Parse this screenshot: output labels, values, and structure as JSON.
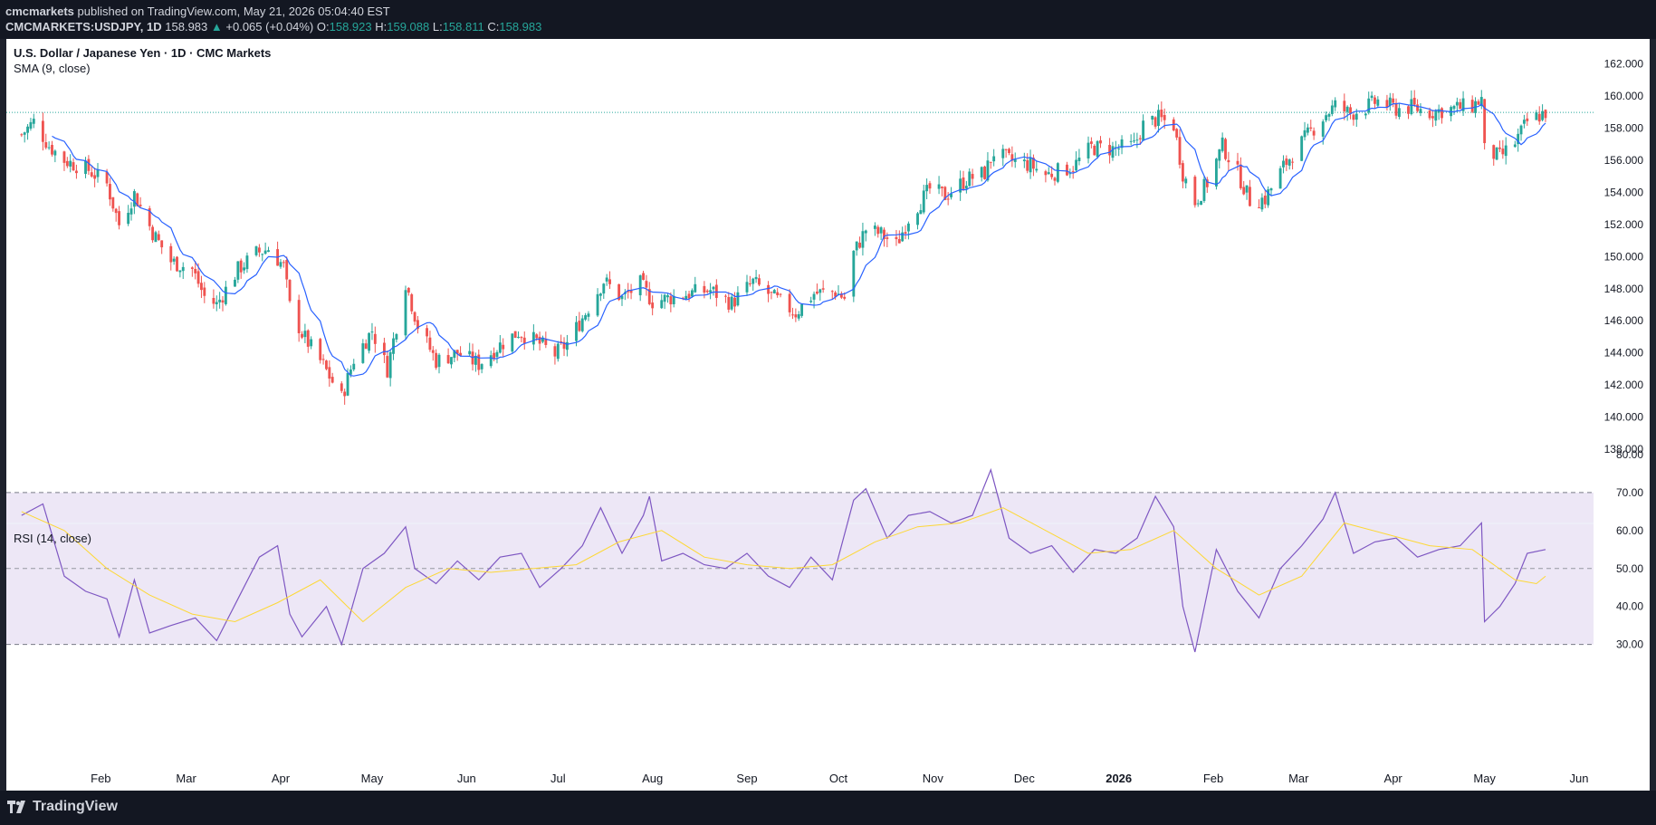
{
  "header": {
    "publisher": "cmcmarkets",
    "published_text": "published on TradingView.com, May 21, 2026 05:04:40 EST",
    "symbol": "CMCMARKETS:USDJPY, 1D",
    "last": "158.983",
    "change_arrow": "▲",
    "change": "+0.065 (+0.04%)",
    "o_label": "O:",
    "o_value": "158.923",
    "h_label": "H:",
    "h_value": "159.088",
    "l_label": "L:",
    "l_value": "158.811",
    "c_label": "C:",
    "c_value": "158.983"
  },
  "pane_labels": {
    "main_title": "U.S. Dollar / Japanese Yen · 1D · CMC Markets",
    "sma": "SMA (9, close)",
    "rsi": "RSI (14, close)"
  },
  "brand": "TradingView",
  "colors": {
    "up": "#26a69a",
    "down": "#ef5350",
    "sma": "#2962ff",
    "rsi": "#7e57c2",
    "rsi_ma": "#fdd835",
    "rsi_band": "#ede7f6",
    "last_price_line": "#26a69a"
  },
  "chart_data": [
    {
      "type": "candlestick",
      "title": "U.S. Dollar / Japanese Yen · 1D · CMC Markets",
      "indicator": "SMA (9, close)",
      "ylim": [
        138,
        162.6
      ],
      "y_ticks": [
        "162.000",
        "160.000",
        "158.000",
        "156.000",
        "154.000",
        "152.000",
        "150.000",
        "148.000",
        "146.000",
        "144.000",
        "142.000",
        "140.000",
        "138.000"
      ],
      "x_tick_labels": [
        "Feb",
        "Mar",
        "Apr",
        "May",
        "Jun",
        "Jul",
        "Aug",
        "Sep",
        "Oct",
        "Nov",
        "Dec",
        "2026",
        "Feb",
        "Mar",
        "Apr",
        "May",
        "Jun"
      ],
      "last_price": 158.983,
      "close_path": [
        [
          "2025-01-06",
          157.6
        ],
        [
          "2025-01-10",
          158.4
        ],
        [
          "2025-01-15",
          156.9
        ],
        [
          "2025-01-20",
          156.0
        ],
        [
          "2025-01-28",
          155.4
        ],
        [
          "2025-02-03",
          154.5
        ],
        [
          "2025-02-07",
          152.0
        ],
        [
          "2025-02-12",
          153.9
        ],
        [
          "2025-02-18",
          151.5
        ],
        [
          "2025-02-24",
          149.7
        ],
        [
          "2025-03-03",
          149.2
        ],
        [
          "2025-03-07",
          147.5
        ],
        [
          "2025-03-11",
          147.0
        ],
        [
          "2025-03-18",
          149.2
        ],
        [
          "2025-03-24",
          150.2
        ],
        [
          "2025-03-28",
          150.5
        ],
        [
          "2025-04-02",
          149.4
        ],
        [
          "2025-04-04",
          146.9
        ],
        [
          "2025-04-08",
          145.2
        ],
        [
          "2025-04-15",
          143.2
        ],
        [
          "2025-04-21",
          141.2
        ],
        [
          "2025-04-25",
          143.6
        ],
        [
          "2025-05-01",
          145.4
        ],
        [
          "2025-05-06",
          143.0
        ],
        [
          "2025-05-12",
          148.4
        ],
        [
          "2025-05-16",
          145.7
        ],
        [
          "2025-05-22",
          143.5
        ],
        [
          "2025-05-29",
          144.0
        ],
        [
          "2025-06-05",
          143.3
        ],
        [
          "2025-06-12",
          144.5
        ],
        [
          "2025-06-18",
          145.3
        ],
        [
          "2025-06-24",
          144.7
        ],
        [
          "2025-06-30",
          143.9
        ],
        [
          "2025-07-04",
          144.6
        ],
        [
          "2025-07-10",
          146.5
        ],
        [
          "2025-07-16",
          148.5
        ],
        [
          "2025-07-22",
          147.4
        ],
        [
          "2025-07-28",
          148.3
        ],
        [
          "2025-08-01",
          147.2
        ],
        [
          "2025-08-06",
          147.4
        ],
        [
          "2025-08-13",
          147.7
        ],
        [
          "2025-08-20",
          147.9
        ],
        [
          "2025-08-27",
          147.1
        ],
        [
          "2025-09-03",
          148.4
        ],
        [
          "2025-09-10",
          147.4
        ],
        [
          "2025-09-17",
          146.5
        ],
        [
          "2025-09-23",
          147.7
        ],
        [
          "2025-09-30",
          147.8
        ],
        [
          "2025-10-03",
          147.4
        ],
        [
          "2025-10-06",
          150.2
        ],
        [
          "2025-10-10",
          151.7
        ],
        [
          "2025-10-15",
          151.4
        ],
        [
          "2025-10-20",
          150.7
        ],
        [
          "2025-10-24",
          152.4
        ],
        [
          "2025-10-31",
          154.2
        ],
        [
          "2025-11-05",
          153.8
        ],
        [
          "2025-11-12",
          154.8
        ],
        [
          "2025-11-18",
          155.2
        ],
        [
          "2025-11-21",
          156.5
        ],
        [
          "2025-11-26",
          156.0
        ],
        [
          "2025-12-03",
          155.7
        ],
        [
          "2025-12-08",
          155.1
        ],
        [
          "2025-12-12",
          155.3
        ],
        [
          "2025-12-17",
          155.6
        ],
        [
          "2025-12-23",
          156.8
        ],
        [
          "2025-12-30",
          156.7
        ],
        [
          "2026-01-06",
          156.9
        ],
        [
          "2026-01-09",
          158.2
        ],
        [
          "2026-01-14",
          158.6
        ],
        [
          "2026-01-19",
          158.2
        ],
        [
          "2026-01-22",
          155.2
        ],
        [
          "2026-01-26",
          153.4
        ],
        [
          "2026-01-30",
          154.6
        ],
        [
          "2026-02-04",
          156.9
        ],
        [
          "2026-02-09",
          155.2
        ],
        [
          "2026-02-13",
          153.5
        ],
        [
          "2026-02-18",
          153.6
        ],
        [
          "2026-02-24",
          155.6
        ],
        [
          "2026-02-27",
          156.4
        ],
        [
          "2026-03-05",
          157.8
        ],
        [
          "2026-03-10",
          158.9
        ],
        [
          "2026-03-13",
          159.4
        ],
        [
          "2026-03-18",
          158.9
        ],
        [
          "2026-03-23",
          159.3
        ],
        [
          "2026-03-27",
          159.7
        ],
        [
          "2026-04-02",
          159.2
        ],
        [
          "2026-04-07",
          159.3
        ],
        [
          "2026-04-13",
          159.0
        ],
        [
          "2026-04-20",
          159.2
        ],
        [
          "2026-04-27",
          159.4
        ],
        [
          "2026-04-30",
          159.8
        ],
        [
          "2026-05-01",
          156.6
        ],
        [
          "2026-05-06",
          156.2
        ],
        [
          "2026-05-11",
          157.1
        ],
        [
          "2026-05-15",
          158.4
        ],
        [
          "2026-05-21",
          158.98
        ]
      ]
    },
    {
      "type": "line",
      "title": "RSI (14, close)",
      "ylim": [
        28,
        80
      ],
      "y_ticks": [
        "80.00",
        "70.00",
        "60.00",
        "50.00",
        "40.00",
        "30.00"
      ],
      "band": [
        30,
        70
      ],
      "midline": 50,
      "series": [
        {
          "role": "rsi",
          "points": [
            [
              "2025-01-06",
              64
            ],
            [
              "2025-01-13",
              67
            ],
            [
              "2025-01-20",
              48
            ],
            [
              "2025-01-27",
              44
            ],
            [
              "2025-02-03",
              42
            ],
            [
              "2025-02-07",
              32
            ],
            [
              "2025-02-12",
              47
            ],
            [
              "2025-02-17",
              33
            ],
            [
              "2025-02-24",
              35
            ],
            [
              "2025-03-04",
              37
            ],
            [
              "2025-03-11",
              31
            ],
            [
              "2025-03-18",
              42
            ],
            [
              "2025-03-25",
              53
            ],
            [
              "2025-03-31",
              56
            ],
            [
              "2025-04-04",
              38
            ],
            [
              "2025-04-08",
              32
            ],
            [
              "2025-04-16",
              40
            ],
            [
              "2025-04-21",
              30
            ],
            [
              "2025-04-28",
              50
            ],
            [
              "2025-05-05",
              54
            ],
            [
              "2025-05-12",
              61
            ],
            [
              "2025-05-15",
              50
            ],
            [
              "2025-05-22",
              46
            ],
            [
              "2025-05-29",
              52
            ],
            [
              "2025-06-05",
              47
            ],
            [
              "2025-06-12",
              53
            ],
            [
              "2025-06-19",
              54
            ],
            [
              "2025-06-25",
              45
            ],
            [
              "2025-07-02",
              50
            ],
            [
              "2025-07-09",
              56
            ],
            [
              "2025-07-15",
              66
            ],
            [
              "2025-07-22",
              54
            ],
            [
              "2025-07-29",
              64
            ],
            [
              "2025-07-31",
              69
            ],
            [
              "2025-08-04",
              52
            ],
            [
              "2025-08-11",
              54
            ],
            [
              "2025-08-18",
              51
            ],
            [
              "2025-08-25",
              50
            ],
            [
              "2025-09-01",
              54
            ],
            [
              "2025-09-08",
              48
            ],
            [
              "2025-09-15",
              45
            ],
            [
              "2025-09-22",
              53
            ],
            [
              "2025-09-29",
              47
            ],
            [
              "2025-10-06",
              68
            ],
            [
              "2025-10-10",
              71
            ],
            [
              "2025-10-17",
              58
            ],
            [
              "2025-10-24",
              64
            ],
            [
              "2025-10-31",
              65
            ],
            [
              "2025-11-07",
              62
            ],
            [
              "2025-11-14",
              64
            ],
            [
              "2025-11-20",
              76
            ],
            [
              "2025-11-26",
              58
            ],
            [
              "2025-12-03",
              54
            ],
            [
              "2025-12-10",
              56
            ],
            [
              "2025-12-17",
              49
            ],
            [
              "2025-12-24",
              55
            ],
            [
              "2025-12-31",
              54
            ],
            [
              "2026-01-07",
              58
            ],
            [
              "2026-01-13",
              69
            ],
            [
              "2026-01-19",
              61
            ],
            [
              "2026-01-22",
              40
            ],
            [
              "2026-01-26",
              28
            ],
            [
              "2026-02-02",
              55
            ],
            [
              "2026-02-09",
              44
            ],
            [
              "2026-02-16",
              37
            ],
            [
              "2026-02-23",
              50
            ],
            [
              "2026-03-02",
              56
            ],
            [
              "2026-03-09",
              63
            ],
            [
              "2026-03-13",
              70
            ],
            [
              "2026-03-19",
              54
            ],
            [
              "2026-03-26",
              57
            ],
            [
              "2026-04-02",
              58
            ],
            [
              "2026-04-09",
              53
            ],
            [
              "2026-04-16",
              55
            ],
            [
              "2026-04-23",
              56
            ],
            [
              "2026-04-30",
              62
            ],
            [
              "2026-05-01",
              36
            ],
            [
              "2026-05-06",
              40
            ],
            [
              "2026-05-11",
              46
            ],
            [
              "2026-05-15",
              54
            ],
            [
              "2026-05-21",
              55
            ]
          ]
        },
        {
          "role": "rsi_ma",
          "points": [
            [
              "2025-01-06",
              65
            ],
            [
              "2025-01-20",
              60
            ],
            [
              "2025-02-03",
              50
            ],
            [
              "2025-02-17",
              43
            ],
            [
              "2025-03-03",
              38
            ],
            [
              "2025-03-17",
              36
            ],
            [
              "2025-03-31",
              41
            ],
            [
              "2025-04-14",
              47
            ],
            [
              "2025-04-28",
              36
            ],
            [
              "2025-05-12",
              45
            ],
            [
              "2025-05-26",
              50
            ],
            [
              "2025-06-09",
              49
            ],
            [
              "2025-06-23",
              50
            ],
            [
              "2025-07-07",
              51
            ],
            [
              "2025-07-21",
              57
            ],
            [
              "2025-08-04",
              60
            ],
            [
              "2025-08-18",
              53
            ],
            [
              "2025-09-01",
              51
            ],
            [
              "2025-09-15",
              50
            ],
            [
              "2025-09-29",
              51
            ],
            [
              "2025-10-13",
              57
            ],
            [
              "2025-10-27",
              61
            ],
            [
              "2025-11-10",
              62
            ],
            [
              "2025-11-24",
              66
            ],
            [
              "2025-12-08",
              60
            ],
            [
              "2025-12-22",
              54
            ],
            [
              "2026-01-05",
              55
            ],
            [
              "2026-01-19",
              60
            ],
            [
              "2026-02-02",
              50
            ],
            [
              "2026-02-16",
              43
            ],
            [
              "2026-03-02",
              48
            ],
            [
              "2026-03-16",
              62
            ],
            [
              "2026-03-30",
              59
            ],
            [
              "2026-04-13",
              56
            ],
            [
              "2026-04-27",
              55
            ],
            [
              "2026-05-11",
              47
            ],
            [
              "2026-05-18",
              46
            ],
            [
              "2026-05-21",
              48
            ]
          ]
        }
      ]
    }
  ]
}
